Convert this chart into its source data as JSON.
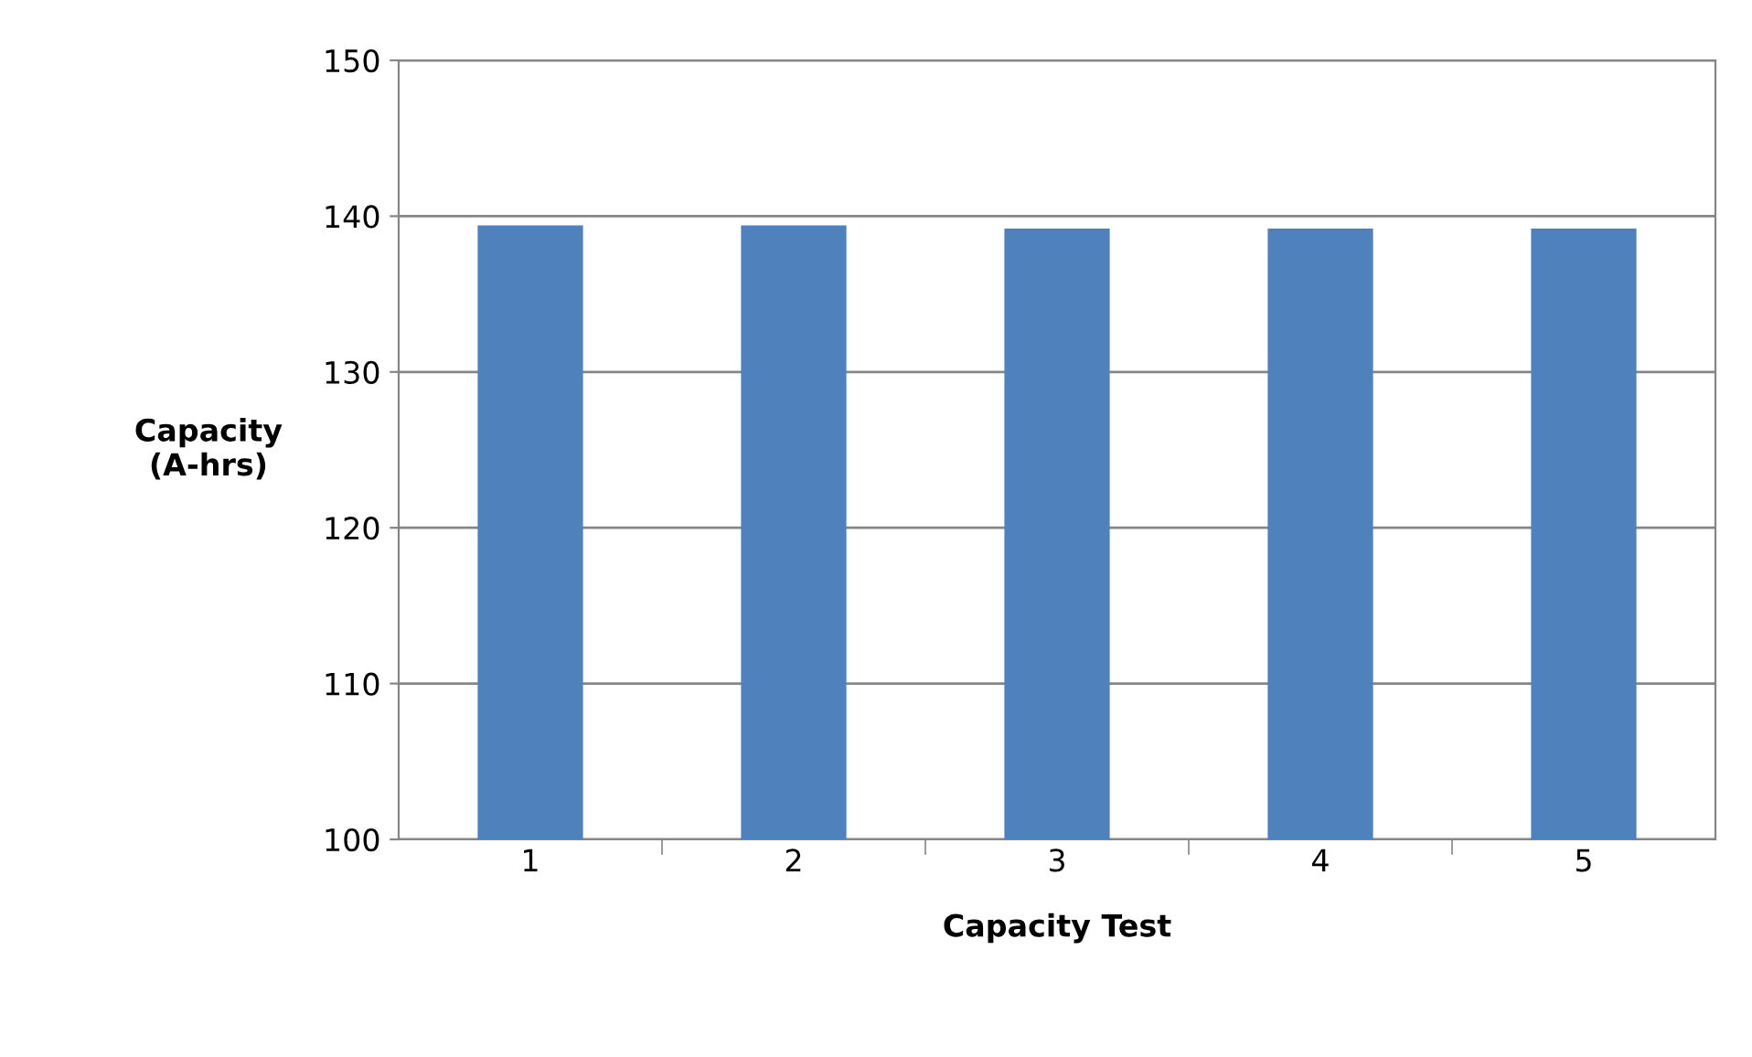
{
  "chart_data": {
    "type": "bar",
    "xlabel": "Capacity Test",
    "ylabel": "Capacity\n(A-hrs)",
    "categories": [
      "1",
      "2",
      "3",
      "4",
      "5"
    ],
    "values": [
      139.4,
      139.4,
      139.2,
      139.2,
      139.2
    ],
    "color": "#4f81bd",
    "ylim": [
      100,
      150
    ],
    "yticks": [
      100,
      110,
      120,
      130,
      140,
      150
    ],
    "grid": "y"
  }
}
